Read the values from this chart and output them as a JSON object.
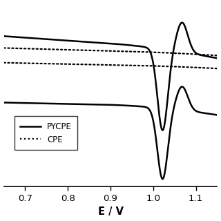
{
  "xlabel": "E / V",
  "xlim": [
    0.65,
    1.15
  ],
  "xticks": [
    0.7,
    0.8,
    0.9,
    1.0,
    1.1
  ],
  "xtick_labels": [
    "0.7",
    "0.8",
    "0.9",
    "1.0",
    "1.1"
  ],
  "legend_labels": [
    "PYCPE",
    "CPE"
  ],
  "line_color": "#000000",
  "background_color": "#ffffff"
}
